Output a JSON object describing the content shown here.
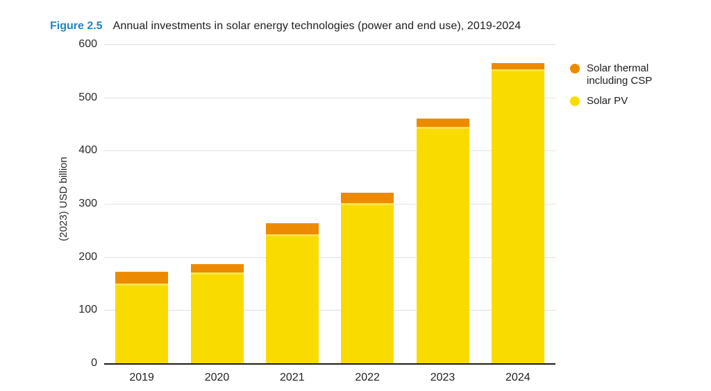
{
  "header": {
    "figure_label": "Figure 2.5",
    "title": "Annual investments in solar energy technologies (power and end use), 2019-2024"
  },
  "colors": {
    "figure_label_blue": "#1E86C8",
    "solar_pv_yellow": "#FADB00",
    "solar_thermal_orange": "#EC8B00",
    "gridline_gray": "#E1E1E1",
    "axis_black": "#1A1A1A"
  },
  "chart_data": {
    "type": "bar",
    "stacked": true,
    "title": "Annual investments in solar energy technologies (power and end use), 2019-2024",
    "ylabel": "(2023) USD billion",
    "xlabel": "",
    "ylim": [
      0,
      600
    ],
    "ytick_step": 100,
    "ytick_labels": [
      "0",
      "100",
      "200",
      "300",
      "400",
      "500",
      "600"
    ],
    "grid": true,
    "categories": [
      "2019",
      "2020",
      "2021",
      "2022",
      "2023",
      "2024"
    ],
    "series": [
      {
        "name": "Solar PV",
        "color": "#FADB00",
        "top_edge": "#FBE34A",
        "values": [
          150,
          171,
          243,
          301,
          445,
          553
        ]
      },
      {
        "name": "Solar thermal including CSP",
        "color": "#EC8B00",
        "values": [
          22,
          16,
          21,
          20,
          15,
          12
        ]
      }
    ],
    "totals": [
      172,
      187,
      264,
      321,
      460,
      565
    ],
    "legend_position": "top-right"
  },
  "legend": {
    "items": [
      {
        "label": "Solar thermal including CSP",
        "color": "#EC8B00"
      },
      {
        "label": "Solar PV",
        "color": "#FADB00"
      }
    ]
  }
}
